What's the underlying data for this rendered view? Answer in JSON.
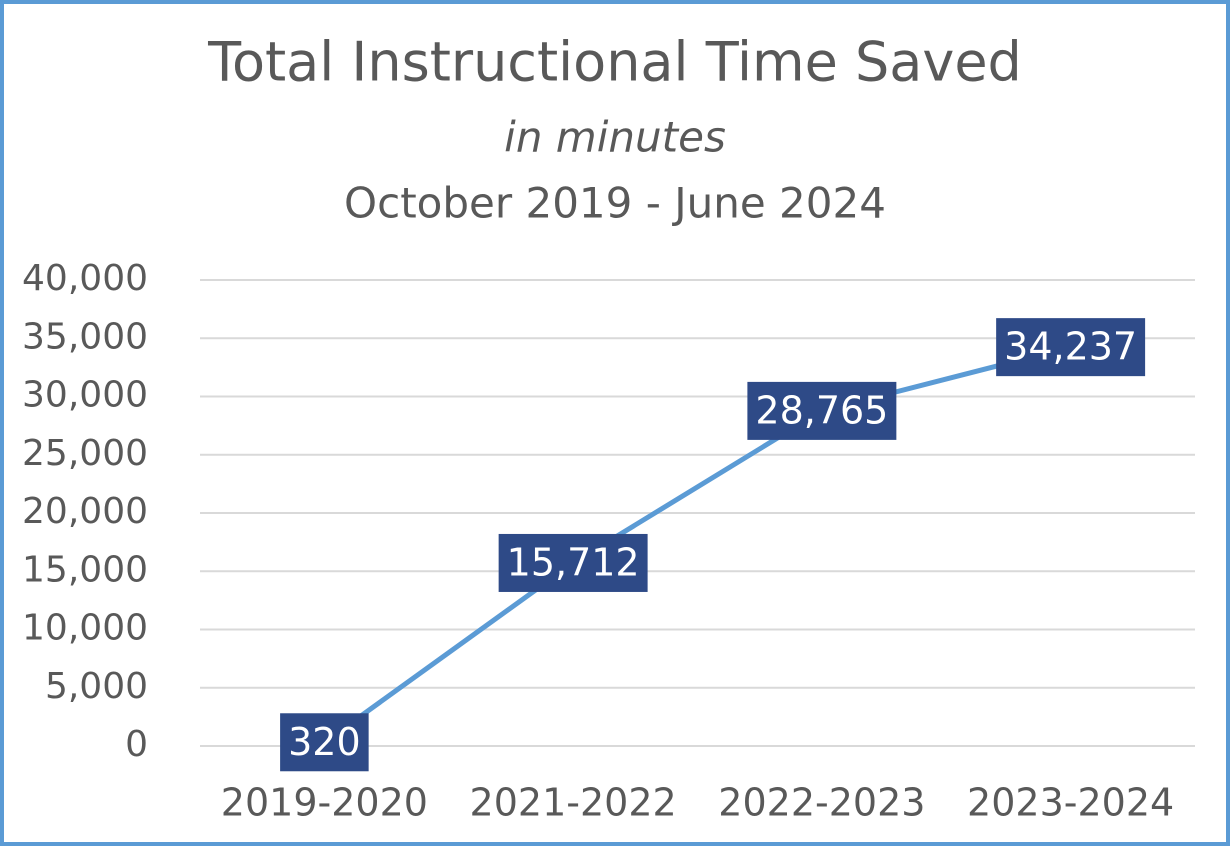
{
  "chart_data": {
    "type": "line",
    "title": "Total Instructional Time Saved",
    "subtitle": "in minutes",
    "date_range": "October 2019 - June 2024",
    "categories": [
      "2019-2020",
      "2021-2022",
      "2022-2023",
      "2023-2024"
    ],
    "series": [
      {
        "name": "Total Instructional Time Saved",
        "color": "#5b9bd5",
        "values": [
          320,
          15712,
          28765,
          34237
        ],
        "value_labels": [
          "320",
          "15,712",
          "28,765",
          "34,237"
        ]
      }
    ],
    "label_color": "#2e4a87",
    "ylim": [
      0,
      40000
    ],
    "yticks": [
      0,
      {
        "value": 5000,
        "label": "5,000"
      },
      {
        "value": 10000,
        "label": "10,000"
      },
      {
        "value": 15000,
        "label": "15,000"
      },
      {
        "value": 20000,
        "label": "20,000"
      },
      {
        "value": 25000,
        "label": "25,000"
      },
      {
        "value": 30000,
        "label": "30,000"
      },
      {
        "value": 35000,
        "label": "35,000"
      },
      {
        "value": 40000,
        "label": "40,000"
      }
    ],
    "grid": true
  }
}
